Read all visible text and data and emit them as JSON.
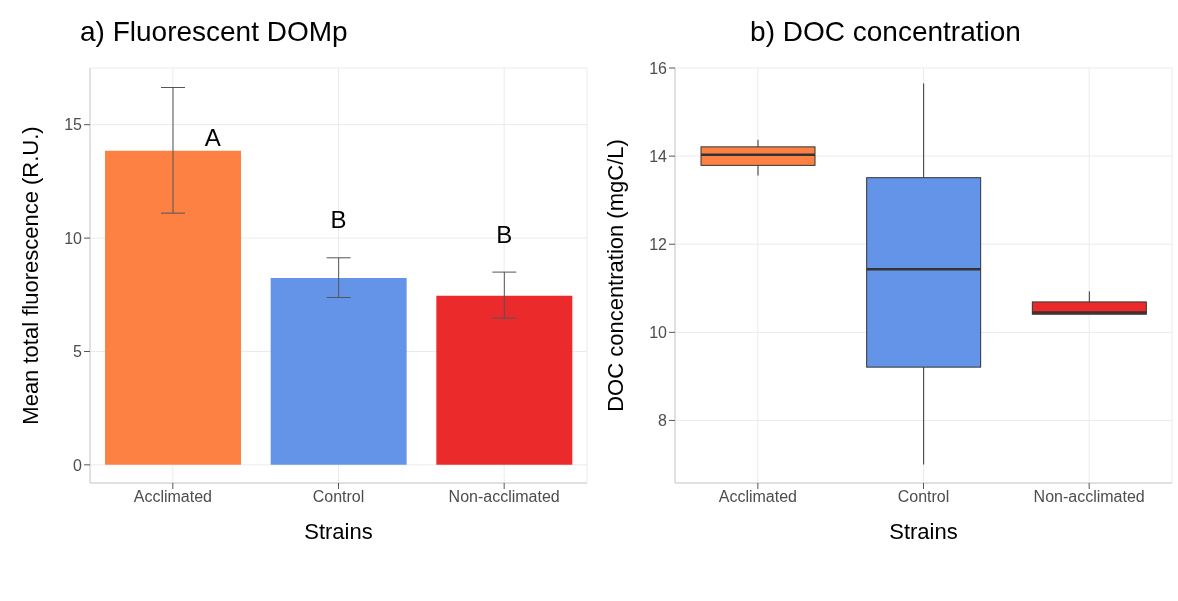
{
  "chart_data": [
    {
      "type": "bar",
      "title": "a) Fluorescent DOMp",
      "xlabel": "Strains",
      "ylabel": "Mean total fluorescence (R.U.)",
      "categories": [
        "Acclimated",
        "Control",
        "Non-acclimated"
      ],
      "values": [
        13.85,
        8.24,
        7.46
      ],
      "colors": [
        "#fe8144",
        "#6494e8",
        "#eb2b2b"
      ],
      "errors": [
        [
          11.1,
          16.64
        ],
        [
          7.38,
          9.13
        ],
        [
          6.47,
          8.5
        ]
      ],
      "ylim": [
        -0.8,
        17.5
      ],
      "yticks": [
        0,
        5,
        10,
        15
      ],
      "grid": true,
      "annotations": [
        "A",
        "B",
        "B"
      ]
    },
    {
      "type": "box",
      "title": "b) DOC concentration",
      "xlabel": "Strains",
      "ylabel": "DOC concentration (mgC/L)",
      "categories": [
        "Acclimated",
        "Control",
        "Non-acclimated"
      ],
      "colors": [
        "#fe8144",
        "#6494e8",
        "#eb2b2b"
      ],
      "boxes": [
        {
          "low": 13.56,
          "q1": 13.79,
          "median": 14.03,
          "q3": 14.21,
          "high": 14.37
        },
        {
          "low": 7.0,
          "q1": 9.21,
          "median": 11.43,
          "q3": 13.51,
          "high": 15.65
        },
        {
          "low": 10.41,
          "q1": 10.41,
          "median": 10.45,
          "q3": 10.69,
          "high": 10.93
        }
      ],
      "ylim": [
        6.58,
        16
      ],
      "yticks": [
        8,
        10,
        12,
        14,
        16
      ],
      "grid": true
    }
  ]
}
